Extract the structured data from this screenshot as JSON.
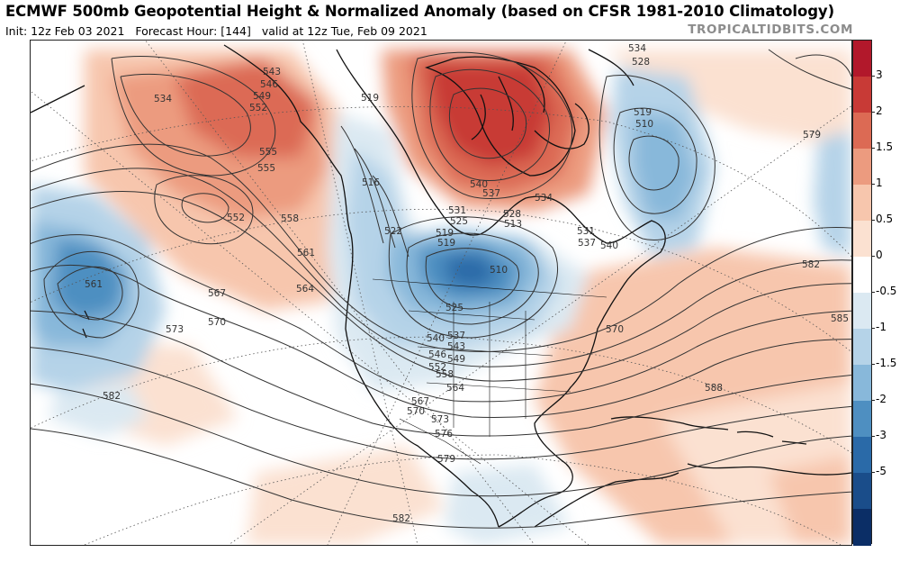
{
  "header": {
    "title": "ECMWF 500mb Geopotential Height & Normalized Anomaly (based on CFSR 1981-2010 Climatology)",
    "init": "Init: 12z Feb 03 2021",
    "forecast_hour": "Forecast Hour: [144]",
    "valid": "valid at 12z Tue, Feb 09 2021",
    "brand": "TROPICALTIDBITS.COM"
  },
  "colorbar": {
    "labels": [
      "3",
      "2",
      "1.5",
      "1",
      "0.5",
      "0",
      "-0.5",
      "-1",
      "-1.5",
      "-2",
      "-3",
      "-5"
    ],
    "colors": [
      "#b2182b",
      "#c83a36",
      "#dc6a54",
      "#ec9b7f",
      "#f7c6ad",
      "#fbe1d1",
      "#ffffff",
      "#dbe9f2",
      "#b5d3e8",
      "#88b8da",
      "#4e8fc1",
      "#2a6aa8",
      "#1a4d8a",
      "#0b2e66"
    ]
  },
  "map": {
    "contour_labels": [
      "534",
      "528",
      "519",
      "510",
      "579",
      "582",
      "585",
      "588",
      "543",
      "546",
      "549",
      "552",
      "555",
      "555",
      "552",
      "558",
      "561",
      "564",
      "567",
      "570",
      "573",
      "582",
      "534",
      "561",
      "519",
      "516",
      "522",
      "519",
      "510",
      "513",
      "531",
      "525",
      "519",
      "528",
      "540",
      "537",
      "534",
      "531",
      "540",
      "537",
      "525",
      "537",
      "540",
      "543",
      "546",
      "549",
      "552",
      "558",
      "564",
      "567",
      "570",
      "573",
      "576",
      "579",
      "582",
      "570"
    ],
    "ocean_fill": "#ffffff",
    "contour_color": "#333333",
    "coast_color": "#111111"
  }
}
